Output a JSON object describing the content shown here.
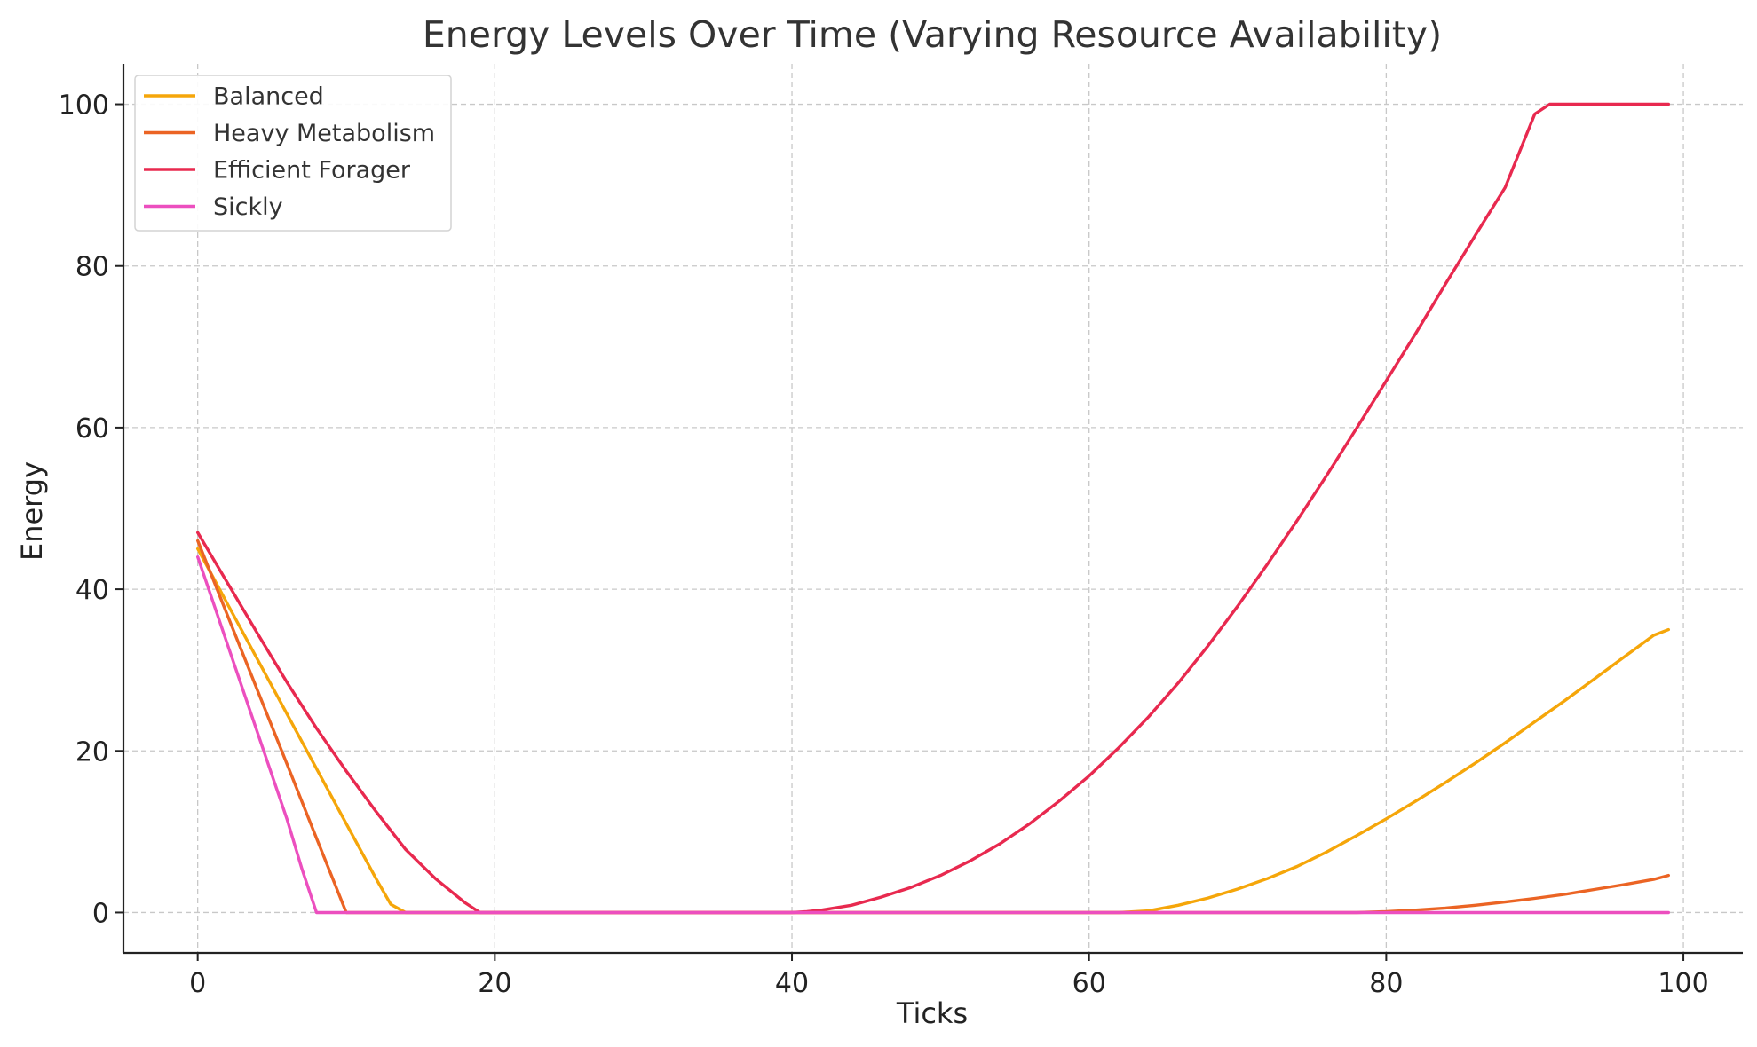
{
  "chart_data": {
    "type": "line",
    "title": "Energy Levels Over Time (Varying Resource Availability)",
    "xlabel": "Ticks",
    "ylabel": "Energy",
    "xlim": [
      -5,
      104
    ],
    "ylim": [
      -5,
      105
    ],
    "xticks": [
      0,
      20,
      40,
      60,
      80,
      100
    ],
    "yticks": [
      0,
      20,
      40,
      60,
      80,
      100
    ],
    "grid": true,
    "legend_position": "top-left",
    "series": [
      {
        "name": "Balanced",
        "color": "#f5a60a",
        "x": [
          0,
          2,
          4,
          6,
          8,
          10,
          12,
          13,
          14,
          20,
          40,
          60,
          62,
          64,
          66,
          68,
          70,
          72,
          74,
          76,
          78,
          80,
          82,
          84,
          86,
          88,
          90,
          92,
          94,
          96,
          98,
          99
        ],
        "y": [
          45,
          38.2,
          31.4,
          24.6,
          17.8,
          11,
          4.2,
          1,
          0,
          0,
          0,
          0,
          0,
          0.2,
          0.9,
          1.8,
          2.9,
          4.2,
          5.7,
          7.5,
          9.5,
          11.6,
          13.8,
          16.1,
          18.5,
          21,
          23.6,
          26.2,
          28.9,
          31.6,
          34.3,
          35
        ]
      },
      {
        "name": "Heavy Metabolism",
        "color": "#eb6424",
        "x": [
          0,
          2,
          4,
          6,
          8,
          9,
          10,
          20,
          40,
          60,
          78,
          80,
          82,
          84,
          86,
          88,
          90,
          92,
          94,
          96,
          98,
          99
        ],
        "y": [
          46,
          36.8,
          27.6,
          18.4,
          9.2,
          4.6,
          0,
          0,
          0,
          0,
          0,
          0.1,
          0.3,
          0.55,
          0.9,
          1.3,
          1.75,
          2.25,
          2.85,
          3.45,
          4.1,
          4.6
        ]
      },
      {
        "name": "Efficient Forager",
        "color": "#e8294f",
        "x": [
          0,
          2,
          4,
          6,
          8,
          10,
          12,
          14,
          16,
          18,
          19,
          20,
          40,
          41,
          42,
          44,
          46,
          48,
          50,
          52,
          54,
          56,
          58,
          60,
          62,
          64,
          66,
          68,
          70,
          72,
          74,
          76,
          78,
          80,
          82,
          84,
          86,
          88,
          90,
          91,
          92,
          99
        ],
        "y": [
          47,
          40.8,
          34.6,
          28.5,
          22.8,
          17.5,
          12.5,
          7.8,
          4.2,
          1.2,
          0,
          0,
          0,
          0.1,
          0.3,
          0.9,
          1.9,
          3.1,
          4.6,
          6.4,
          8.5,
          11,
          13.8,
          16.9,
          20.4,
          24.2,
          28.4,
          33,
          37.9,
          43.1,
          48.5,
          54.1,
          59.9,
          65.8,
          71.7,
          77.8,
          83.8,
          89.7,
          98.8,
          100,
          100,
          100
        ]
      },
      {
        "name": "Sickly",
        "color": "#ec4fbf",
        "x": [
          0,
          2,
          4,
          6,
          7,
          8,
          20,
          40,
          60,
          80,
          99
        ],
        "y": [
          44,
          33.2,
          22.4,
          11.6,
          5.5,
          0,
          0,
          0,
          0,
          0,
          0
        ]
      }
    ]
  }
}
